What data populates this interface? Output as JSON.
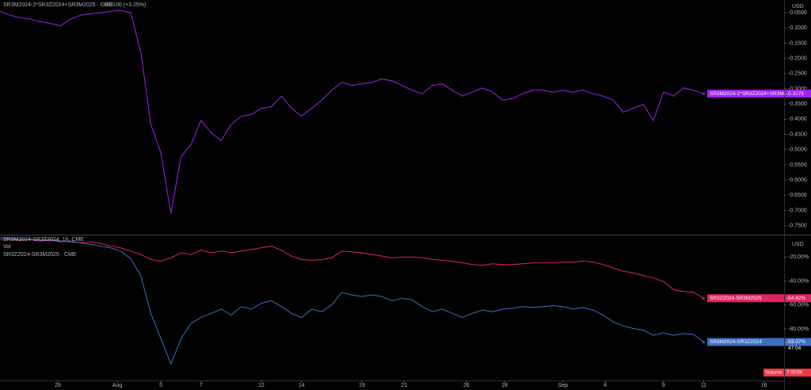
{
  "chart_data": [
    {
      "type": "line",
      "title": "SR3M2024-2*SR3Z2024+SR3M2025 · CME",
      "title_change": "-0.0100 (+3.25%)",
      "axis_unit": "USD",
      "grid": false,
      "x": [
        0,
        0.5,
        1,
        1.5,
        2,
        2.5,
        3,
        3.5,
        4,
        4.5,
        5,
        5.5,
        6,
        6.5,
        7,
        7.5,
        8,
        8.5,
        9,
        9.5,
        10,
        10.5,
        11,
        11.5,
        12,
        12.5,
        13,
        13.5,
        14,
        14.5,
        15,
        15.5,
        16,
        16.5,
        17,
        17.5,
        18,
        18.5,
        19,
        19.5,
        20,
        20.5,
        21,
        21.5,
        22,
        22.5,
        23,
        23.5,
        24,
        24.5,
        25,
        25.5,
        26,
        26.5,
        27,
        27.5,
        28,
        28.5,
        29,
        29.5,
        30,
        30.5,
        31,
        31.5,
        32,
        32.5,
        33,
        33.5,
        34,
        34.5,
        35
      ],
      "xlim": [
        0,
        39
      ],
      "ylim": [
        -0.777,
        -0.008
      ],
      "yticks": [
        {
          "value": -0.05,
          "label": "-0.0500"
        },
        {
          "value": -0.1,
          "label": "-0.1000"
        },
        {
          "value": -0.15,
          "label": "-0.1500"
        },
        {
          "value": -0.2,
          "label": "-0.2000"
        },
        {
          "value": -0.25,
          "label": "-0.2500"
        },
        {
          "value": -0.3,
          "label": "-0.3000"
        },
        {
          "value": -0.35,
          "label": "-0.3500"
        },
        {
          "value": -0.4,
          "label": "-0.4000"
        },
        {
          "value": -0.45,
          "label": "-0.4500"
        },
        {
          "value": -0.5,
          "label": "-0.5000"
        },
        {
          "value": -0.55,
          "label": "-0.5500"
        },
        {
          "value": -0.6,
          "label": "-0.6000"
        },
        {
          "value": -0.65,
          "label": "-0.6500"
        },
        {
          "value": -0.7,
          "label": "-0.7000"
        },
        {
          "value": -0.75,
          "label": "-0.7500"
        }
      ],
      "series": [
        {
          "name": "SR3M2024-2*SR3Z2024+SR3M2025",
          "color": "#a020f0",
          "last_label": "-0.3175",
          "values": [
            -0.045,
            -0.058,
            -0.066,
            -0.071,
            -0.079,
            -0.085,
            -0.093,
            -0.071,
            -0.058,
            -0.053,
            -0.05,
            -0.045,
            -0.042,
            -0.05,
            -0.178,
            -0.417,
            -0.51,
            -0.71,
            -0.523,
            -0.483,
            -0.404,
            -0.444,
            -0.47,
            -0.417,
            -0.39,
            -0.385,
            -0.364,
            -0.359,
            -0.324,
            -0.364,
            -0.39,
            -0.364,
            -0.337,
            -0.305,
            -0.279,
            -0.289,
            -0.284,
            -0.279,
            -0.268,
            -0.274,
            -0.289,
            -0.305,
            -0.316,
            -0.289,
            -0.284,
            -0.305,
            -0.324,
            -0.311,
            -0.297,
            -0.311,
            -0.337,
            -0.332,
            -0.316,
            -0.305,
            -0.305,
            -0.311,
            -0.305,
            -0.311,
            -0.305,
            -0.316,
            -0.324,
            -0.337,
            -0.377,
            -0.364,
            -0.351,
            -0.404,
            -0.311,
            -0.324,
            -0.297,
            -0.305,
            -0.316
          ]
        }
      ]
    },
    {
      "type": "line",
      "title": "SR3M2024-SR3Z2024, 1h, CME",
      "subtitle": "Vol",
      "title2": "SR3Z2024-SR3M2025 · CME",
      "axis_unit": "USD",
      "grid": false,
      "volume_label": "Volume",
      "volume_value": "7.903K",
      "time_label": "47:04",
      "x": [
        0,
        0.5,
        1,
        1.5,
        2,
        2.5,
        3,
        3.5,
        4,
        4.5,
        5,
        5.5,
        6,
        6.5,
        7,
        7.5,
        8,
        8.5,
        9,
        9.5,
        10,
        10.5,
        11,
        11.5,
        12,
        12.5,
        13,
        13.5,
        14,
        14.5,
        15,
        15.5,
        16,
        16.5,
        17,
        17.5,
        18,
        18.5,
        19,
        19.5,
        20,
        20.5,
        21,
        21.5,
        22,
        22.5,
        23,
        23.5,
        24,
        24.5,
        25,
        25.5,
        26,
        26.5,
        27,
        27.5,
        28,
        28.5,
        29,
        29.5,
        30,
        30.5,
        31,
        31.5,
        32,
        32.5,
        33,
        33.5,
        34,
        34.5,
        35
      ],
      "xlim": [
        0,
        39
      ],
      "xticks": [
        {
          "value": 2.87,
          "label": "29"
        },
        {
          "value": 5.83,
          "label": "Aug"
        },
        {
          "value": 8,
          "label": "5"
        },
        {
          "value": 10,
          "label": "7"
        },
        {
          "value": 13,
          "label": "12"
        },
        {
          "value": 15,
          "label": "14"
        },
        {
          "value": 18,
          "label": "19"
        },
        {
          "value": 20.1,
          "label": "21"
        },
        {
          "value": 23.2,
          "label": "26"
        },
        {
          "value": 25.1,
          "label": "28"
        },
        {
          "value": 28,
          "label": "Sep"
        },
        {
          "value": 30.1,
          "label": "4"
        },
        {
          "value": 33,
          "label": "9"
        },
        {
          "value": 35,
          "label": "11"
        },
        {
          "value": 38,
          "label": "16"
        }
      ],
      "ylim": [
        -123,
        -4
      ],
      "yticks": [
        {
          "value": -20,
          "label": "-20.00%"
        },
        {
          "value": -40,
          "label": "-40.00%"
        },
        {
          "value": -60,
          "label": "-60.00%"
        },
        {
          "value": -80,
          "label": "-80.00%"
        }
      ],
      "series": [
        {
          "name": "SR3Z2024-SR3M2025",
          "color": "#e0245e",
          "last_label": "-54.62%",
          "values": [
            -5.3,
            -5.3,
            -6.0,
            -5.3,
            -6.7,
            -6.0,
            -7.4,
            -6.7,
            -8.1,
            -7.4,
            -8.8,
            -10.9,
            -12.3,
            -15.1,
            -17.9,
            -22.1,
            -23.5,
            -20.7,
            -16.5,
            -17.9,
            -14.4,
            -16.5,
            -15.1,
            -16.5,
            -15.1,
            -13.7,
            -12.3,
            -10.9,
            -14.4,
            -19.3,
            -22.1,
            -22.8,
            -22.1,
            -20.7,
            -15.1,
            -15.8,
            -16.5,
            -17.9,
            -19.3,
            -20.7,
            -20.0,
            -20.0,
            -20.7,
            -22.1,
            -22.8,
            -23.5,
            -24.9,
            -26.3,
            -27.0,
            -25.6,
            -26.3,
            -26.3,
            -25.6,
            -24.9,
            -24.9,
            -24.9,
            -24.2,
            -24.2,
            -23.5,
            -24.2,
            -26.3,
            -29.1,
            -31.9,
            -33.3,
            -35.4,
            -37.5,
            -40.4,
            -47.4,
            -48.8,
            -49.5,
            -54.4
          ]
        },
        {
          "name": "SR3M2024-SR3Z2024",
          "color": "#3d6fc4",
          "last_label": "-93.07%",
          "values": [
            -3.9,
            -4.6,
            -5.3,
            -5.3,
            -6.0,
            -5.3,
            -6.7,
            -7.4,
            -8.1,
            -9.5,
            -10.9,
            -12.3,
            -15.1,
            -21.4,
            -35.4,
            -67.0,
            -88.1,
            -109.1,
            -88.1,
            -75.4,
            -70.5,
            -67.0,
            -63.5,
            -68.4,
            -61.4,
            -63.5,
            -58.6,
            -56.5,
            -61.4,
            -67.0,
            -70.5,
            -63.5,
            -65.6,
            -60.0,
            -49.5,
            -51.6,
            -53.0,
            -51.6,
            -53.0,
            -56.5,
            -54.4,
            -55.8,
            -61.4,
            -65.6,
            -63.5,
            -67.0,
            -70.5,
            -67.0,
            -64.2,
            -65.6,
            -63.5,
            -62.8,
            -61.4,
            -62.1,
            -61.4,
            -60.7,
            -61.4,
            -63.5,
            -62.1,
            -64.2,
            -68.4,
            -74.0,
            -77.5,
            -79.6,
            -81.0,
            -85.3,
            -83.2,
            -85.3,
            -83.9,
            -84.6,
            -90.9
          ]
        }
      ]
    }
  ]
}
